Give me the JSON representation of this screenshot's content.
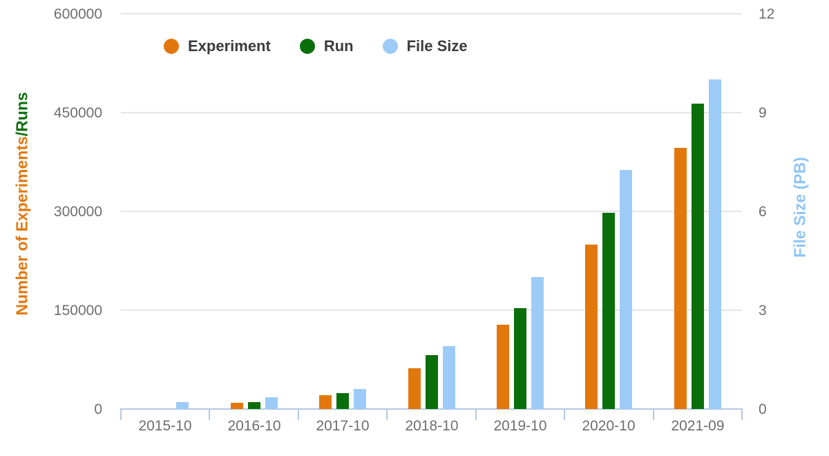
{
  "chart_data": {
    "type": "bar",
    "categories": [
      "2015-10",
      "2016-10",
      "2017-10",
      "2018-10",
      "2019-10",
      "2020-10",
      "2021-09"
    ],
    "series": [
      {
        "name": "Experiment",
        "axis": "left",
        "color": "#e2770e",
        "values": [
          0,
          9000,
          21000,
          62000,
          128000,
          250000,
          396000
        ]
      },
      {
        "name": "Run",
        "axis": "left",
        "color": "#0a6f0a",
        "values": [
          0,
          11000,
          24000,
          82000,
          153000,
          298000,
          464000
        ]
      },
      {
        "name": "File Size",
        "axis": "right",
        "color": "#9dcbf8",
        "values": [
          0.2,
          0.35,
          0.6,
          1.9,
          4.0,
          7.25,
          10.0
        ]
      }
    ],
    "left_axis": {
      "title_primary": "Number of Experiments",
      "title_secondary": "/Runs",
      "tick_labels": [
        "0",
        "150000",
        "300000",
        "450000",
        "600000"
      ],
      "min": 0,
      "max": 600000
    },
    "right_axis": {
      "title": "File Size (PB)",
      "tick_labels": [
        "0",
        "3",
        "6",
        "9",
        "12"
      ],
      "min": 0,
      "max": 12
    },
    "legend": [
      "Experiment",
      "Run",
      "File Size"
    ],
    "grid": true,
    "legend_position": "top-left",
    "colors": {
      "axis_line": "#b4c8e4",
      "gridline": "#e5e5e5",
      "tick_text": "#6e6e6e",
      "legend_text": "#3b3b3b",
      "right_title": "#8ec5f6"
    }
  }
}
